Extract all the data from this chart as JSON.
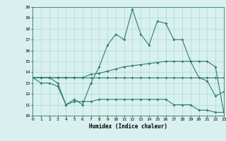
{
  "xlabel": "Humidex (Indice chaleur)",
  "x": [
    0,
    1,
    2,
    3,
    4,
    5,
    6,
    7,
    8,
    9,
    10,
    11,
    12,
    13,
    14,
    15,
    16,
    17,
    18,
    19,
    20,
    21,
    22,
    23
  ],
  "line1": [
    13.5,
    13.5,
    13.5,
    13.0,
    11.0,
    11.5,
    11.0,
    13.0,
    14.5,
    16.5,
    17.5,
    17.0,
    19.8,
    17.5,
    16.5,
    18.7,
    18.5,
    17.0,
    17.0,
    15.0,
    13.5,
    13.2,
    11.8,
    12.2
  ],
  "line2": [
    13.5,
    13.5,
    13.5,
    13.5,
    13.5,
    13.5,
    13.5,
    13.5,
    13.5,
    13.5,
    13.5,
    13.5,
    13.5,
    13.5,
    13.5,
    13.5,
    13.5,
    13.5,
    13.5,
    13.5,
    13.5,
    13.5,
    13.5,
    13.5
  ],
  "line3": [
    13.5,
    13.5,
    13.5,
    13.5,
    13.5,
    13.5,
    13.5,
    13.8,
    13.9,
    14.1,
    14.3,
    14.5,
    14.6,
    14.7,
    14.8,
    14.9,
    15.0,
    15.0,
    15.0,
    15.0,
    15.0,
    15.0,
    14.5,
    10.3
  ],
  "line4": [
    13.5,
    13.0,
    13.0,
    12.7,
    11.0,
    11.3,
    11.3,
    11.3,
    11.5,
    11.5,
    11.5,
    11.5,
    11.5,
    11.5,
    11.5,
    11.5,
    11.5,
    11.0,
    11.0,
    11.0,
    10.5,
    10.5,
    10.3,
    10.3
  ],
  "color": "#2e7d6e",
  "bg_color": "#d8f0ee",
  "grid_color": "#b0d8d4",
  "ylim": [
    10,
    20
  ],
  "xlim": [
    0,
    23
  ],
  "yticks": [
    10,
    11,
    12,
    13,
    14,
    15,
    16,
    17,
    18,
    19,
    20
  ],
  "xticks": [
    0,
    1,
    2,
    3,
    4,
    5,
    6,
    7,
    8,
    9,
    10,
    11,
    12,
    13,
    14,
    15,
    16,
    17,
    18,
    19,
    20,
    21,
    22,
    23
  ]
}
